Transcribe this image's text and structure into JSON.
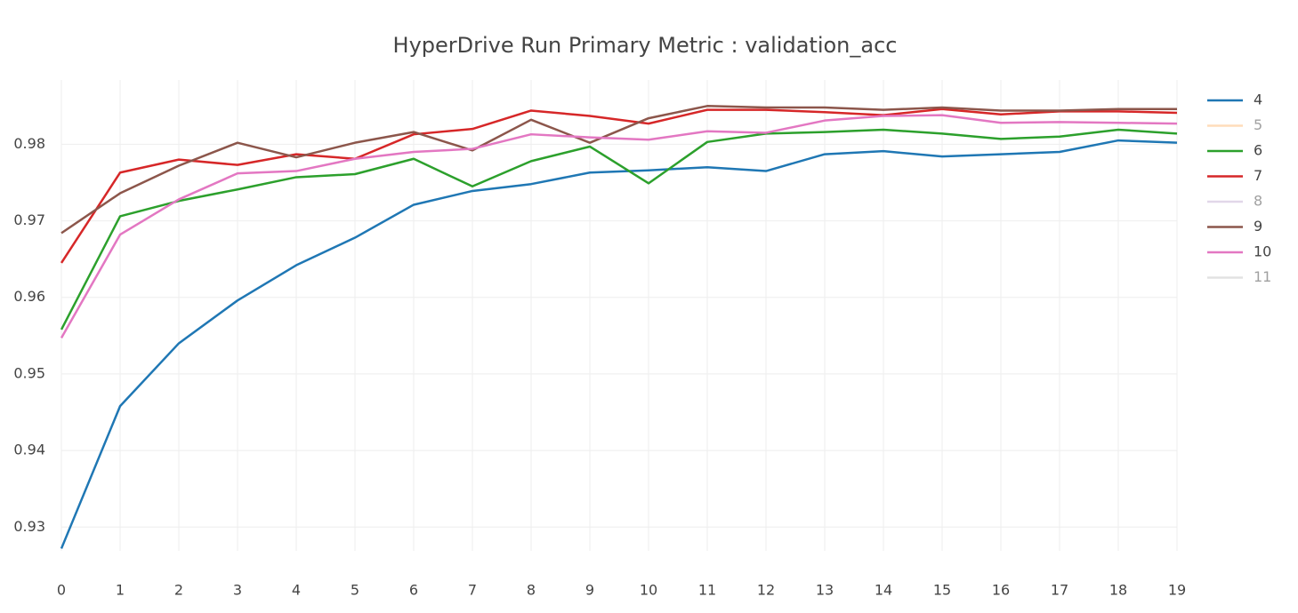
{
  "chart_data": {
    "type": "line",
    "title": "HyperDrive Run Primary Metric : validation_acc",
    "x": [
      0,
      1,
      2,
      3,
      4,
      5,
      6,
      7,
      8,
      9,
      10,
      11,
      12,
      13,
      14,
      15,
      16,
      17,
      18,
      19
    ],
    "xlim": [
      0,
      19
    ],
    "xticks": [
      0,
      1,
      2,
      3,
      4,
      5,
      6,
      7,
      8,
      9,
      10,
      11,
      12,
      13,
      14,
      15,
      16,
      17,
      18,
      19
    ],
    "ylim": [
      0.9269,
      0.9884
    ],
    "yticks": [
      0.93,
      0.94,
      0.95,
      0.96,
      0.97,
      0.98
    ],
    "grid": true,
    "legend": "right",
    "series": [
      {
        "name": "4",
        "color": "#1f77b4",
        "values": [
          0.9272,
          0.9458,
          0.954,
          0.9596,
          0.9642,
          0.9678,
          0.9721,
          0.9739,
          0.9748,
          0.9763,
          0.9766,
          0.977,
          0.9765,
          0.9787,
          0.9791,
          0.9784,
          0.9787,
          0.979,
          0.9805,
          0.9802
        ]
      },
      {
        "name": "5",
        "color": "#ffbb78",
        "visible": "legendonly"
      },
      {
        "name": "6",
        "color": "#2ca02c",
        "values": [
          0.9558,
          0.9706,
          0.9726,
          0.9741,
          0.9757,
          0.9761,
          0.9781,
          0.9745,
          0.9778,
          0.9797,
          0.9749,
          0.9803,
          0.9814,
          0.9816,
          0.9819,
          0.9814,
          0.9807,
          0.981,
          0.9819,
          0.9814
        ]
      },
      {
        "name": "7",
        "color": "#d62728",
        "values": [
          0.9645,
          0.9763,
          0.978,
          0.9773,
          0.9787,
          0.9781,
          0.9813,
          0.982,
          0.9844,
          0.9837,
          0.9827,
          0.9845,
          0.9845,
          0.9842,
          0.9838,
          0.9846,
          0.9839,
          0.9843,
          0.9843,
          0.9841
        ]
      },
      {
        "name": "8",
        "color": "#c5b0d5",
        "visible": "legendonly"
      },
      {
        "name": "9",
        "color": "#8c564b",
        "values": [
          0.9684,
          0.9736,
          0.9772,
          0.9802,
          0.9783,
          0.9802,
          0.9816,
          0.9792,
          0.9832,
          0.9802,
          0.9834,
          0.985,
          0.9848,
          0.9848,
          0.9845,
          0.9848,
          0.9844,
          0.9844,
          0.9846,
          0.9846
        ]
      },
      {
        "name": "10",
        "color": "#e377c2",
        "values": [
          0.9547,
          0.9682,
          0.9728,
          0.9762,
          0.9765,
          0.9781,
          0.979,
          0.9794,
          0.9813,
          0.9809,
          0.9806,
          0.9817,
          0.9815,
          0.9831,
          0.9837,
          0.9838,
          0.9828,
          0.9829,
          0.9828,
          0.9827
        ]
      },
      {
        "name": "11",
        "color": "#c7c7c7",
        "visible": "legendonly"
      }
    ]
  }
}
